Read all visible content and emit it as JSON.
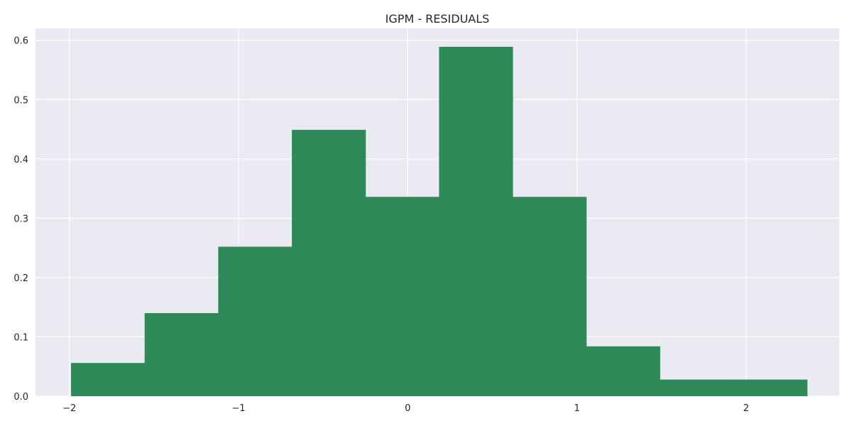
{
  "chart_data": {
    "type": "bar",
    "title": "IGPM - RESIDUALS",
    "xlabel": "",
    "ylabel": "",
    "xlim": [
      -2.2,
      2.55
    ],
    "ylim": [
      0,
      0.62
    ],
    "grid": true,
    "legend": "none",
    "xticks": [
      {
        "value": -2,
        "label": "−2"
      },
      {
        "value": -1,
        "label": "−1"
      },
      {
        "value": 0,
        "label": "0"
      },
      {
        "value": 1,
        "label": "1"
      },
      {
        "value": 2,
        "label": "2"
      }
    ],
    "yticks": [
      {
        "value": 0.0,
        "label": "0.0"
      },
      {
        "value": 0.1,
        "label": "0.1"
      },
      {
        "value": 0.2,
        "label": "0.2"
      },
      {
        "value": 0.3,
        "label": "0.3"
      },
      {
        "value": 0.4,
        "label": "0.4"
      },
      {
        "value": 0.5,
        "label": "0.5"
      },
      {
        "value": 0.6,
        "label": "0.6"
      }
    ],
    "bins": [
      {
        "x0": -1.99,
        "x1": -1.555,
        "value": 0.056
      },
      {
        "x0": -1.555,
        "x1": -1.12,
        "value": 0.14
      },
      {
        "x0": -1.12,
        "x1": -0.685,
        "value": 0.252
      },
      {
        "x0": -0.685,
        "x1": -0.25,
        "value": 0.449
      },
      {
        "x0": -0.25,
        "x1": 0.185,
        "value": 0.336
      },
      {
        "x0": 0.185,
        "x1": 0.62,
        "value": 0.589
      },
      {
        "x0": 0.62,
        "x1": 1.055,
        "value": 0.336
      },
      {
        "x0": 1.055,
        "x1": 1.49,
        "value": 0.084
      },
      {
        "x0": 1.49,
        "x1": 1.925,
        "value": 0.028
      },
      {
        "x0": 1.925,
        "x1": 2.36,
        "value": 0.028
      }
    ],
    "colors": {
      "bar": "#2e8b57",
      "plot_background": "#eaeaf2",
      "grid": "#ffffff",
      "text": "#262626"
    }
  }
}
